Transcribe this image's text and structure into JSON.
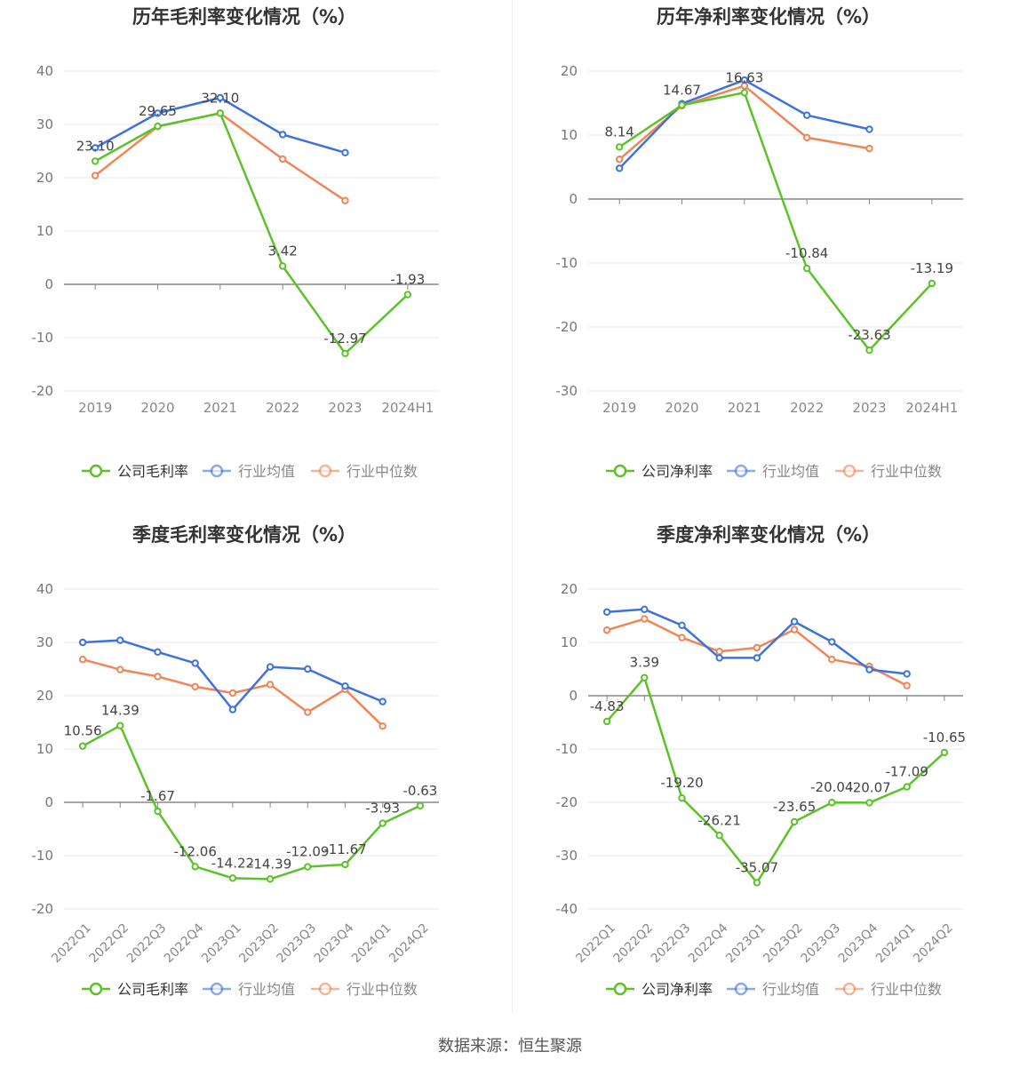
{
  "source_note": "数据来源：恒生聚源",
  "colors": {
    "company": "#5cc22a",
    "industry_avg": "#3d72dd",
    "industry_median": "#f08556"
  },
  "chart_data": [
    {
      "type": "line",
      "title": "历年毛利率变化情况（%）",
      "x": [
        "2019",
        "2020",
        "2021",
        "2022",
        "2023",
        "2024H1"
      ],
      "ylim": [
        -20,
        40
      ],
      "yticks": [
        40,
        30,
        20,
        10,
        0,
        -10,
        -20
      ],
      "xlabel_rotate": false,
      "legend": "bottom",
      "label_series": 0,
      "series": [
        {
          "name": "公司毛利率",
          "color": "#5cc22a",
          "values": [
            23.1,
            29.65,
            32.1,
            3.42,
            -12.97,
            -1.93
          ],
          "labels": [
            "23.10",
            "29.65",
            "32.10",
            "3.42",
            "-12.97",
            "-1.93"
          ]
        },
        {
          "name": "行业均值",
          "color": "#3d72dd",
          "values": [
            25.6,
            32.1,
            35.0,
            28.1,
            24.7,
            null
          ]
        },
        {
          "name": "行业中位数",
          "color": "#f08556",
          "values": [
            20.4,
            29.6,
            32.1,
            23.5,
            15.7,
            null
          ]
        }
      ]
    },
    {
      "type": "line",
      "title": "历年净利率变化情况（%）",
      "x": [
        "2019",
        "2020",
        "2021",
        "2022",
        "2023",
        "2024H1"
      ],
      "ylim": [
        -30,
        20
      ],
      "yticks": [
        20,
        10,
        0,
        -10,
        -20,
        -30
      ],
      "xlabel_rotate": false,
      "legend": "bottom",
      "label_series": 0,
      "series": [
        {
          "name": "公司净利率",
          "color": "#5cc22a",
          "values": [
            8.14,
            14.67,
            16.63,
            -10.84,
            -23.63,
            -13.19
          ],
          "labels": [
            "8.14",
            "14.67",
            "16.63",
            "-10.84",
            "-23.63",
            "-13.19"
          ]
        },
        {
          "name": "行业均值",
          "color": "#3d72dd",
          "values": [
            4.8,
            14.9,
            18.6,
            13.1,
            10.9,
            null
          ]
        },
        {
          "name": "行业中位数",
          "color": "#f08556",
          "values": [
            6.2,
            14.6,
            17.7,
            9.6,
            7.9,
            null
          ]
        }
      ]
    },
    {
      "type": "line",
      "title": "季度毛利率变化情况（%）",
      "x": [
        "2022Q1",
        "2022Q2",
        "2022Q3",
        "2022Q4",
        "2023Q1",
        "2023Q2",
        "2023Q3",
        "2023Q4",
        "2024Q1",
        "2024Q2"
      ],
      "ylim": [
        -20,
        40
      ],
      "yticks": [
        40,
        30,
        20,
        10,
        0,
        -10,
        -20
      ],
      "xlabel_rotate": true,
      "legend": "bottom",
      "label_series": 0,
      "series": [
        {
          "name": "公司毛利率",
          "color": "#5cc22a",
          "values": [
            10.56,
            14.39,
            -1.67,
            -12.06,
            -14.22,
            -14.39,
            -12.09,
            -11.67,
            -3.93,
            -0.63
          ],
          "labels": [
            "10.56",
            "14.39",
            "-1.67",
            "-12.06",
            "-14.22",
            "-14.39",
            "-12.09",
            "-11.67",
            "-3.93",
            "-0.63"
          ]
        },
        {
          "name": "行业均值",
          "color": "#3d72dd",
          "values": [
            30.0,
            30.4,
            28.2,
            26.1,
            17.4,
            25.4,
            25.0,
            21.8,
            18.9,
            null
          ]
        },
        {
          "name": "行业中位数",
          "color": "#f08556",
          "values": [
            26.8,
            24.9,
            23.6,
            21.7,
            20.5,
            22.1,
            16.9,
            21.2,
            14.3,
            null
          ]
        }
      ]
    },
    {
      "type": "line",
      "title": "季度净利率变化情况（%）",
      "x": [
        "2022Q1",
        "2022Q2",
        "2022Q3",
        "2022Q4",
        "2023Q1",
        "2023Q2",
        "2023Q3",
        "2023Q4",
        "2024Q1",
        "2024Q2"
      ],
      "ylim": [
        -40,
        20
      ],
      "yticks": [
        20,
        10,
        0,
        -10,
        -20,
        -30,
        -40
      ],
      "xlabel_rotate": true,
      "legend": "bottom",
      "label_series": 0,
      "series": [
        {
          "name": "公司净利率",
          "color": "#5cc22a",
          "values": [
            -4.83,
            3.39,
            -19.2,
            -26.21,
            -35.07,
            -23.65,
            -20.04,
            -20.07,
            -17.09,
            -10.65
          ],
          "labels": [
            "-4.83",
            "3.39",
            "-19.20",
            "-26.21",
            "-35.07",
            "-23.65",
            "-20.04",
            "-20.07",
            "-17.09",
            "-10.65"
          ]
        },
        {
          "name": "行业均值",
          "color": "#3d72dd",
          "values": [
            15.7,
            16.2,
            13.2,
            7.1,
            7.1,
            13.9,
            10.1,
            4.9,
            4.1,
            null
          ]
        },
        {
          "name": "行业中位数",
          "color": "#f08556",
          "values": [
            12.3,
            14.4,
            10.9,
            8.3,
            9.0,
            12.4,
            6.8,
            5.5,
            1.9,
            null
          ]
        }
      ]
    }
  ]
}
